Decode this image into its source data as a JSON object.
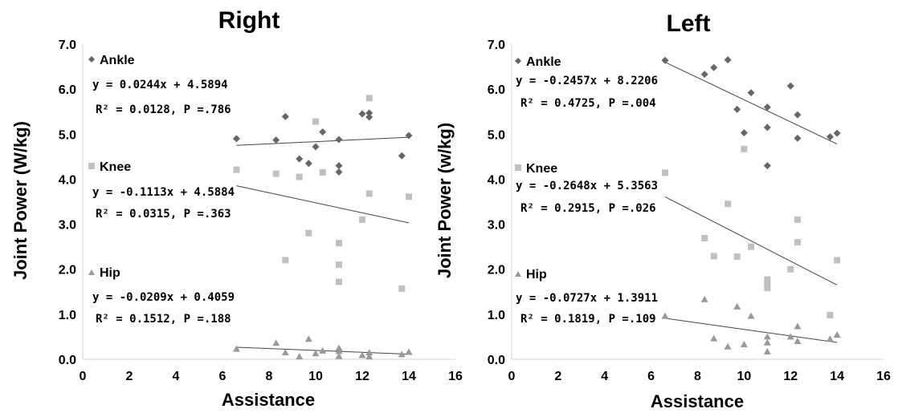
{
  "chart_data": [
    {
      "type": "scatter",
      "title": "Right",
      "xlabel": "Assistance",
      "ylabel": "Joint Power (W/kg)",
      "xlim": [
        0,
        16
      ],
      "ylim": [
        0,
        7
      ],
      "xticks": [
        "0",
        "2",
        "4",
        "6",
        "8",
        "10",
        "12",
        "14",
        "16"
      ],
      "yticks": [
        "0.0",
        "1.0",
        "2.0",
        "3.0",
        "4.0",
        "5.0",
        "6.0",
        "7.0"
      ],
      "series": [
        {
          "name": "Ankle",
          "marker": "diamond",
          "color": "#666666",
          "equation": "y = 0.0244x + 4.5894",
          "stats": "R² = 0.0128, P =.786",
          "slope": 0.0244,
          "intercept": 4.5894,
          "points": [
            [
              6.6,
              4.9
            ],
            [
              8.3,
              4.87
            ],
            [
              8.7,
              5.39
            ],
            [
              9.3,
              4.45
            ],
            [
              9.7,
              4.35
            ],
            [
              10,
              4.72
            ],
            [
              10.3,
              5.05
            ],
            [
              11,
              4.88
            ],
            [
              11,
              4.3
            ],
            [
              11,
              4.16
            ],
            [
              12,
              5.45
            ],
            [
              12.3,
              5.47
            ],
            [
              12.3,
              5.38
            ],
            [
              13.7,
              4.52
            ],
            [
              14,
              4.97
            ]
          ]
        },
        {
          "name": "Knee",
          "marker": "square",
          "color": "#c0c0c0",
          "equation": "y = -0.1113x + 4.5884",
          "stats": "R² = 0.0315, P =.363",
          "slope": -0.1113,
          "intercept": 4.5884,
          "points": [
            [
              6.6,
              4.21
            ],
            [
              8.3,
              4.12
            ],
            [
              8.7,
              2.2
            ],
            [
              9.3,
              4.05
            ],
            [
              9.7,
              2.8
            ],
            [
              10,
              5.28
            ],
            [
              10.3,
              4.15
            ],
            [
              11,
              2.58
            ],
            [
              11,
              2.1
            ],
            [
              11,
              1.72
            ],
            [
              12,
              3.1
            ],
            [
              12.3,
              5.8
            ],
            [
              12.3,
              3.68
            ],
            [
              13.7,
              1.57
            ],
            [
              14,
              3.61
            ]
          ]
        },
        {
          "name": "Hip",
          "marker": "triangle",
          "color": "#999999",
          "equation": "y = -0.0209x + 0.4059",
          "stats": "R² = 0.1512, P =.188",
          "slope": -0.0209,
          "intercept": 0.4059,
          "points": [
            [
              6.6,
              0.23
            ],
            [
              8.3,
              0.36
            ],
            [
              8.7,
              0.15
            ],
            [
              9.3,
              0.06
            ],
            [
              9.7,
              0.45
            ],
            [
              10,
              0.13
            ],
            [
              10.3,
              0.19
            ],
            [
              11,
              0.25
            ],
            [
              11,
              0.18
            ],
            [
              11,
              0.07
            ],
            [
              12,
              0.09
            ],
            [
              12.3,
              0.15
            ],
            [
              12.3,
              0.06
            ],
            [
              13.7,
              0.11
            ],
            [
              14,
              0.16
            ]
          ]
        }
      ]
    },
    {
      "type": "scatter",
      "title": "Left",
      "xlabel": "Assistance",
      "ylabel": "Joint Power (w/kg)",
      "xlim": [
        0,
        16
      ],
      "ylim": [
        0,
        7
      ],
      "xticks": [
        "0",
        "2",
        "4",
        "6",
        "8",
        "10",
        "12",
        "14",
        "16"
      ],
      "yticks": [
        "0.0",
        "1.0",
        "2.0",
        "3.0",
        "4.0",
        "5.0",
        "6.0",
        "7.0"
      ],
      "series": [
        {
          "name": "Ankle",
          "marker": "diamond",
          "color": "#666666",
          "equation": "y = -0.2457x + 8.2206",
          "stats": "R² = 0.4725, P =.004",
          "slope": -0.2457,
          "intercept": 8.2206,
          "points": [
            [
              6.6,
              6.64
            ],
            [
              8.3,
              6.33
            ],
            [
              8.7,
              6.48
            ],
            [
              9.3,
              6.65
            ],
            [
              9.7,
              5.55
            ],
            [
              10,
              5.03
            ],
            [
              10.3,
              5.92
            ],
            [
              11,
              5.6
            ],
            [
              11,
              5.15
            ],
            [
              11,
              4.3
            ],
            [
              12,
              6.07
            ],
            [
              12.3,
              5.43
            ],
            [
              12.3,
              4.91
            ],
            [
              13.7,
              4.94
            ],
            [
              14,
              5.02
            ]
          ]
        },
        {
          "name": "Knee",
          "marker": "square",
          "color": "#c0c0c0",
          "equation": "y = -0.2648x + 5.3563",
          "stats": "R² = 0.2915, P =.026",
          "slope": -0.2648,
          "intercept": 5.3563,
          "points": [
            [
              6.6,
              4.14
            ],
            [
              8.3,
              2.69
            ],
            [
              8.7,
              2.29
            ],
            [
              9.3,
              3.45
            ],
            [
              9.7,
              2.28
            ],
            [
              10,
              4.67
            ],
            [
              10.3,
              2.5
            ],
            [
              11,
              1.77
            ],
            [
              11,
              1.66
            ],
            [
              11,
              1.58
            ],
            [
              12,
              2.0
            ],
            [
              12.3,
              3.1
            ],
            [
              12.3,
              2.6
            ],
            [
              13.7,
              0.98
            ],
            [
              14,
              2.2
            ]
          ]
        },
        {
          "name": "Hip",
          "marker": "triangle",
          "color": "#999999",
          "equation": "y = -0.0727x + 1.3911",
          "stats": "R² = 0.1819, P =.109",
          "slope": -0.0727,
          "intercept": 1.3911,
          "points": [
            [
              6.6,
              0.96
            ],
            [
              8.3,
              1.33
            ],
            [
              8.7,
              0.46
            ],
            [
              9.3,
              0.28
            ],
            [
              9.7,
              1.17
            ],
            [
              10,
              0.33
            ],
            [
              10.3,
              0.96
            ],
            [
              11,
              0.5
            ],
            [
              11,
              0.37
            ],
            [
              11,
              0.17
            ],
            [
              12,
              0.5
            ],
            [
              12.3,
              0.73
            ],
            [
              12.3,
              0.4
            ],
            [
              13.7,
              0.45
            ],
            [
              14,
              0.54
            ]
          ]
        }
      ]
    }
  ]
}
